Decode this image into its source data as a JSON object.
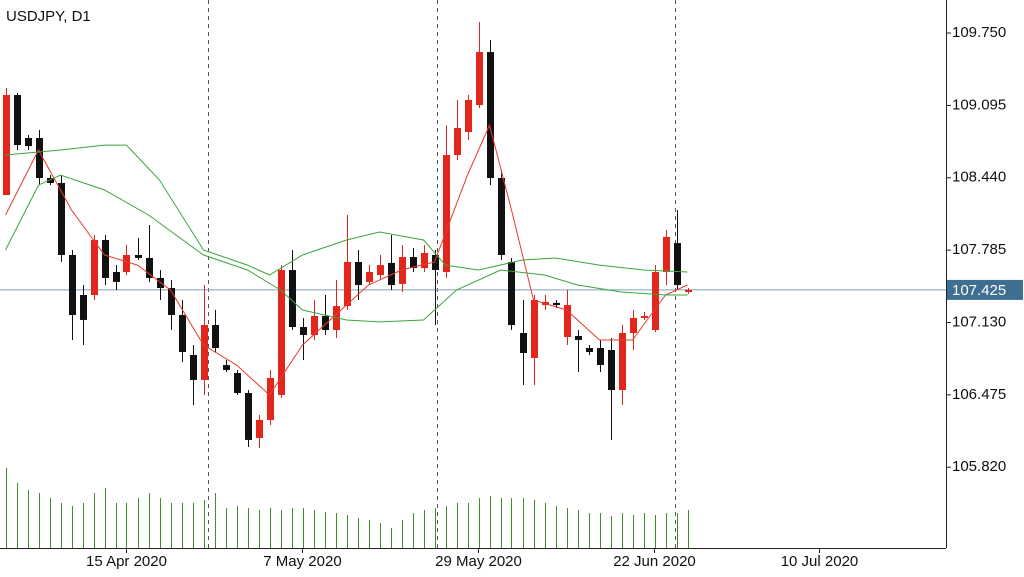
{
  "chart_data": {
    "type": "candlestick",
    "title": "USDJPY, D1",
    "xlim": [
      -0.5,
      85.5
    ],
    "xticks": [
      {
        "value": 11,
        "label": "15 Apr 2020"
      },
      {
        "value": 27,
        "label": "7 May 2020"
      },
      {
        "value": 43,
        "label": "29 May 2020"
      },
      {
        "value": 59,
        "label": "22 Jun 2020"
      },
      {
        "value": 74,
        "label": "10 Jul 2020"
      }
    ],
    "ylim": [
      105.089,
      110.049
    ],
    "yticks": [
      {
        "value": 105.82,
        "label": "105.820"
      },
      106.475,
      {
        "value": 107.13,
        "label": "107.130"
      },
      107.785,
      {
        "value": 108.44,
        "label": "108.440"
      },
      109.095,
      {
        "value": 109.75,
        "label": "109.750"
      }
    ],
    "current_price": 107.425,
    "up_color": "#e3261b",
    "down_color": "#111111",
    "open": [
      108.284,
      109.189,
      108.8,
      108.8,
      108.438,
      108.393,
      107.741,
      107.379,
      107.379,
      107.877,
      107.587,
      107.587,
      107.741,
      107.714,
      107.533,
      107.442,
      107.198,
      106.836,
      106.61,
      107.107,
      106.745,
      106.673,
      106.492,
      106.085,
      106.248,
      106.474,
      107.605,
      107.089,
      107.017,
      107.189,
      107.062,
      107.279,
      107.678,
      107.497,
      107.56,
      107.669,
      107.479,
      107.723,
      107.623,
      107.741,
      107.587,
      108.646,
      108.854,
      109.098,
      109.578,
      108.438,
      107.678,
      107.035,
      106.809,
      107.288,
      107.307,
      106.999,
      107.008,
      106.899,
      106.899,
      106.881,
      106.519,
      107.035,
      107.171,
      107.062,
      107.587,
      107.849,
      107.406
    ],
    "high": [
      109.252,
      109.207,
      108.827,
      108.872,
      108.465,
      108.465,
      107.786,
      107.469,
      107.922,
      107.922,
      107.65,
      107.831,
      107.895,
      108.012,
      107.605,
      107.515,
      107.334,
      106.926,
      107.469,
      107.243,
      106.791,
      106.7,
      106.519,
      106.293,
      106.7,
      107.65,
      107.786,
      107.171,
      107.334,
      107.379,
      107.515,
      108.103,
      107.786,
      107.65,
      107.741,
      107.922,
      107.831,
      107.804,
      107.831,
      107.786,
      108.917,
      109.144,
      109.189,
      109.85,
      109.687,
      108.51,
      107.714,
      107.334,
      107.379,
      107.379,
      107.334,
      107.424,
      107.062,
      106.926,
      106.972,
      106.99,
      107.107,
      107.243,
      107.225,
      107.65,
      107.967,
      108.148,
      107.442
    ],
    "low": [
      108.284,
      108.691,
      108.691,
      108.374,
      108.374,
      107.678,
      106.972,
      106.926,
      107.334,
      107.469,
      107.424,
      107.56,
      107.696,
      107.497,
      107.334,
      107.062,
      106.772,
      106.383,
      106.474,
      106.863,
      106.682,
      106.474,
      106.003,
      105.994,
      106.202,
      106.447,
      107.062,
      106.791,
      106.972,
      107.017,
      106.99,
      107.243,
      107.334,
      107.469,
      107.515,
      107.424,
      107.406,
      107.587,
      107.587,
      107.107,
      107.533,
      108.601,
      108.782,
      109.071,
      108.374,
      107.696,
      107.062,
      106.564,
      106.564,
      107.243,
      107.261,
      106.926,
      106.682,
      106.836,
      106.682,
      106.067,
      106.383,
      106.881,
      107.153,
      107.044,
      107.469,
      107.424,
      107.388
    ],
    "close": [
      109.189,
      108.736,
      108.727,
      108.438,
      108.393,
      107.741,
      107.198,
      107.153,
      107.877,
      107.533,
      107.497,
      107.741,
      107.714,
      107.533,
      107.442,
      107.198,
      106.863,
      106.61,
      107.107,
      106.899,
      106.7,
      106.492,
      106.067,
      106.248,
      106.628,
      107.605,
      107.089,
      107.017,
      107.189,
      107.062,
      107.279,
      107.678,
      107.469,
      107.587,
      107.65,
      107.469,
      107.723,
      107.623,
      107.759,
      107.605,
      108.646,
      108.89,
      109.144,
      109.578,
      108.438,
      107.741,
      107.107,
      106.854,
      107.334,
      107.316,
      107.288,
      107.288,
      106.972,
      106.863,
      106.745,
      106.519,
      107.035,
      107.171,
      107.189,
      107.587,
      107.904,
      107.469,
      107.425
    ],
    "volume_lim": [
      0,
      100
    ],
    "volume_color": "#3f8f2f",
    "volume": [
      80,
      65,
      58,
      55,
      50,
      45,
      42,
      45,
      55,
      60,
      45,
      45,
      50,
      55,
      50,
      45,
      45,
      45,
      48,
      55,
      40,
      42,
      40,
      38,
      40,
      38,
      40,
      40,
      38,
      36,
      35,
      33,
      30,
      28,
      25,
      20,
      28,
      35,
      38,
      40,
      42,
      45,
      45,
      50,
      52,
      50,
      50,
      50,
      48,
      45,
      42,
      40,
      38,
      35,
      35,
      32,
      35,
      33,
      35,
      33,
      35,
      35,
      38
    ],
    "lines": [
      {
        "color": "#e8392e",
        "x": [
          0,
          3,
          6,
          9,
          12,
          15,
          18,
          21,
          24,
          27,
          30,
          33,
          36,
          39,
          42,
          44,
          46,
          48,
          51,
          54,
          57,
          60,
          62
        ],
        "values": [
          108.103,
          108.691,
          108.148,
          107.741,
          107.65,
          107.424,
          106.926,
          106.745,
          106.474,
          106.926,
          107.198,
          107.469,
          107.605,
          107.678,
          108.465,
          108.917,
          108.148,
          107.334,
          107.243,
          106.972,
          106.972,
          107.379,
          107.469
        ]
      },
      {
        "color": "#3aa63a",
        "x": [
          0,
          5,
          9,
          11,
          14,
          18,
          22,
          24,
          27,
          31,
          34,
          38,
          40,
          43,
          47,
          50,
          54,
          58,
          62
        ],
        "values": [
          108.646,
          108.691,
          108.736,
          108.736,
          108.42,
          107.786,
          107.65,
          107.56,
          107.741,
          107.877,
          107.949,
          107.877,
          107.65,
          107.605,
          107.696,
          107.714,
          107.65,
          107.605,
          107.587
        ]
      },
      {
        "color": "#3aa63a",
        "x": [
          0,
          3,
          5,
          9,
          13,
          18,
          22,
          25,
          27,
          31,
          34,
          38,
          41,
          45,
          49,
          52,
          56,
          60,
          62
        ],
        "values": [
          107.786,
          108.374,
          108.465,
          108.329,
          108.103,
          107.741,
          107.605,
          107.424,
          107.243,
          107.153,
          107.135,
          107.153,
          107.424,
          107.605,
          107.56,
          107.469,
          107.406,
          107.379,
          107.379
        ]
      }
    ]
  }
}
